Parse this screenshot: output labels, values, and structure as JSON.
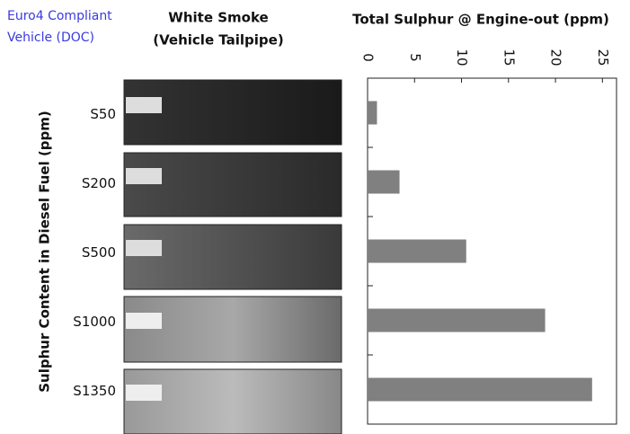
{
  "chart_data": {
    "type": "bar",
    "orientation": "horizontal",
    "title": "Total Sulphur @ Engine-out (ppm)",
    "ylabel": "Sulphur Content in Diesel Fuel (ppm)",
    "left_note": [
      "Euro4 Compliant",
      "Vehicle (DOC)"
    ],
    "panel_title": [
      "White Smoke",
      "(Vehicle Tailpipe)"
    ],
    "categories": [
      "S50",
      "S200",
      "S500",
      "S1000",
      "S1350"
    ],
    "values": [
      1.0,
      3.4,
      10.5,
      18.9,
      23.9
    ],
    "color": "#808080",
    "xlim": [
      0,
      26.5
    ],
    "xticks": [
      0,
      5,
      10,
      15,
      20,
      25
    ]
  }
}
